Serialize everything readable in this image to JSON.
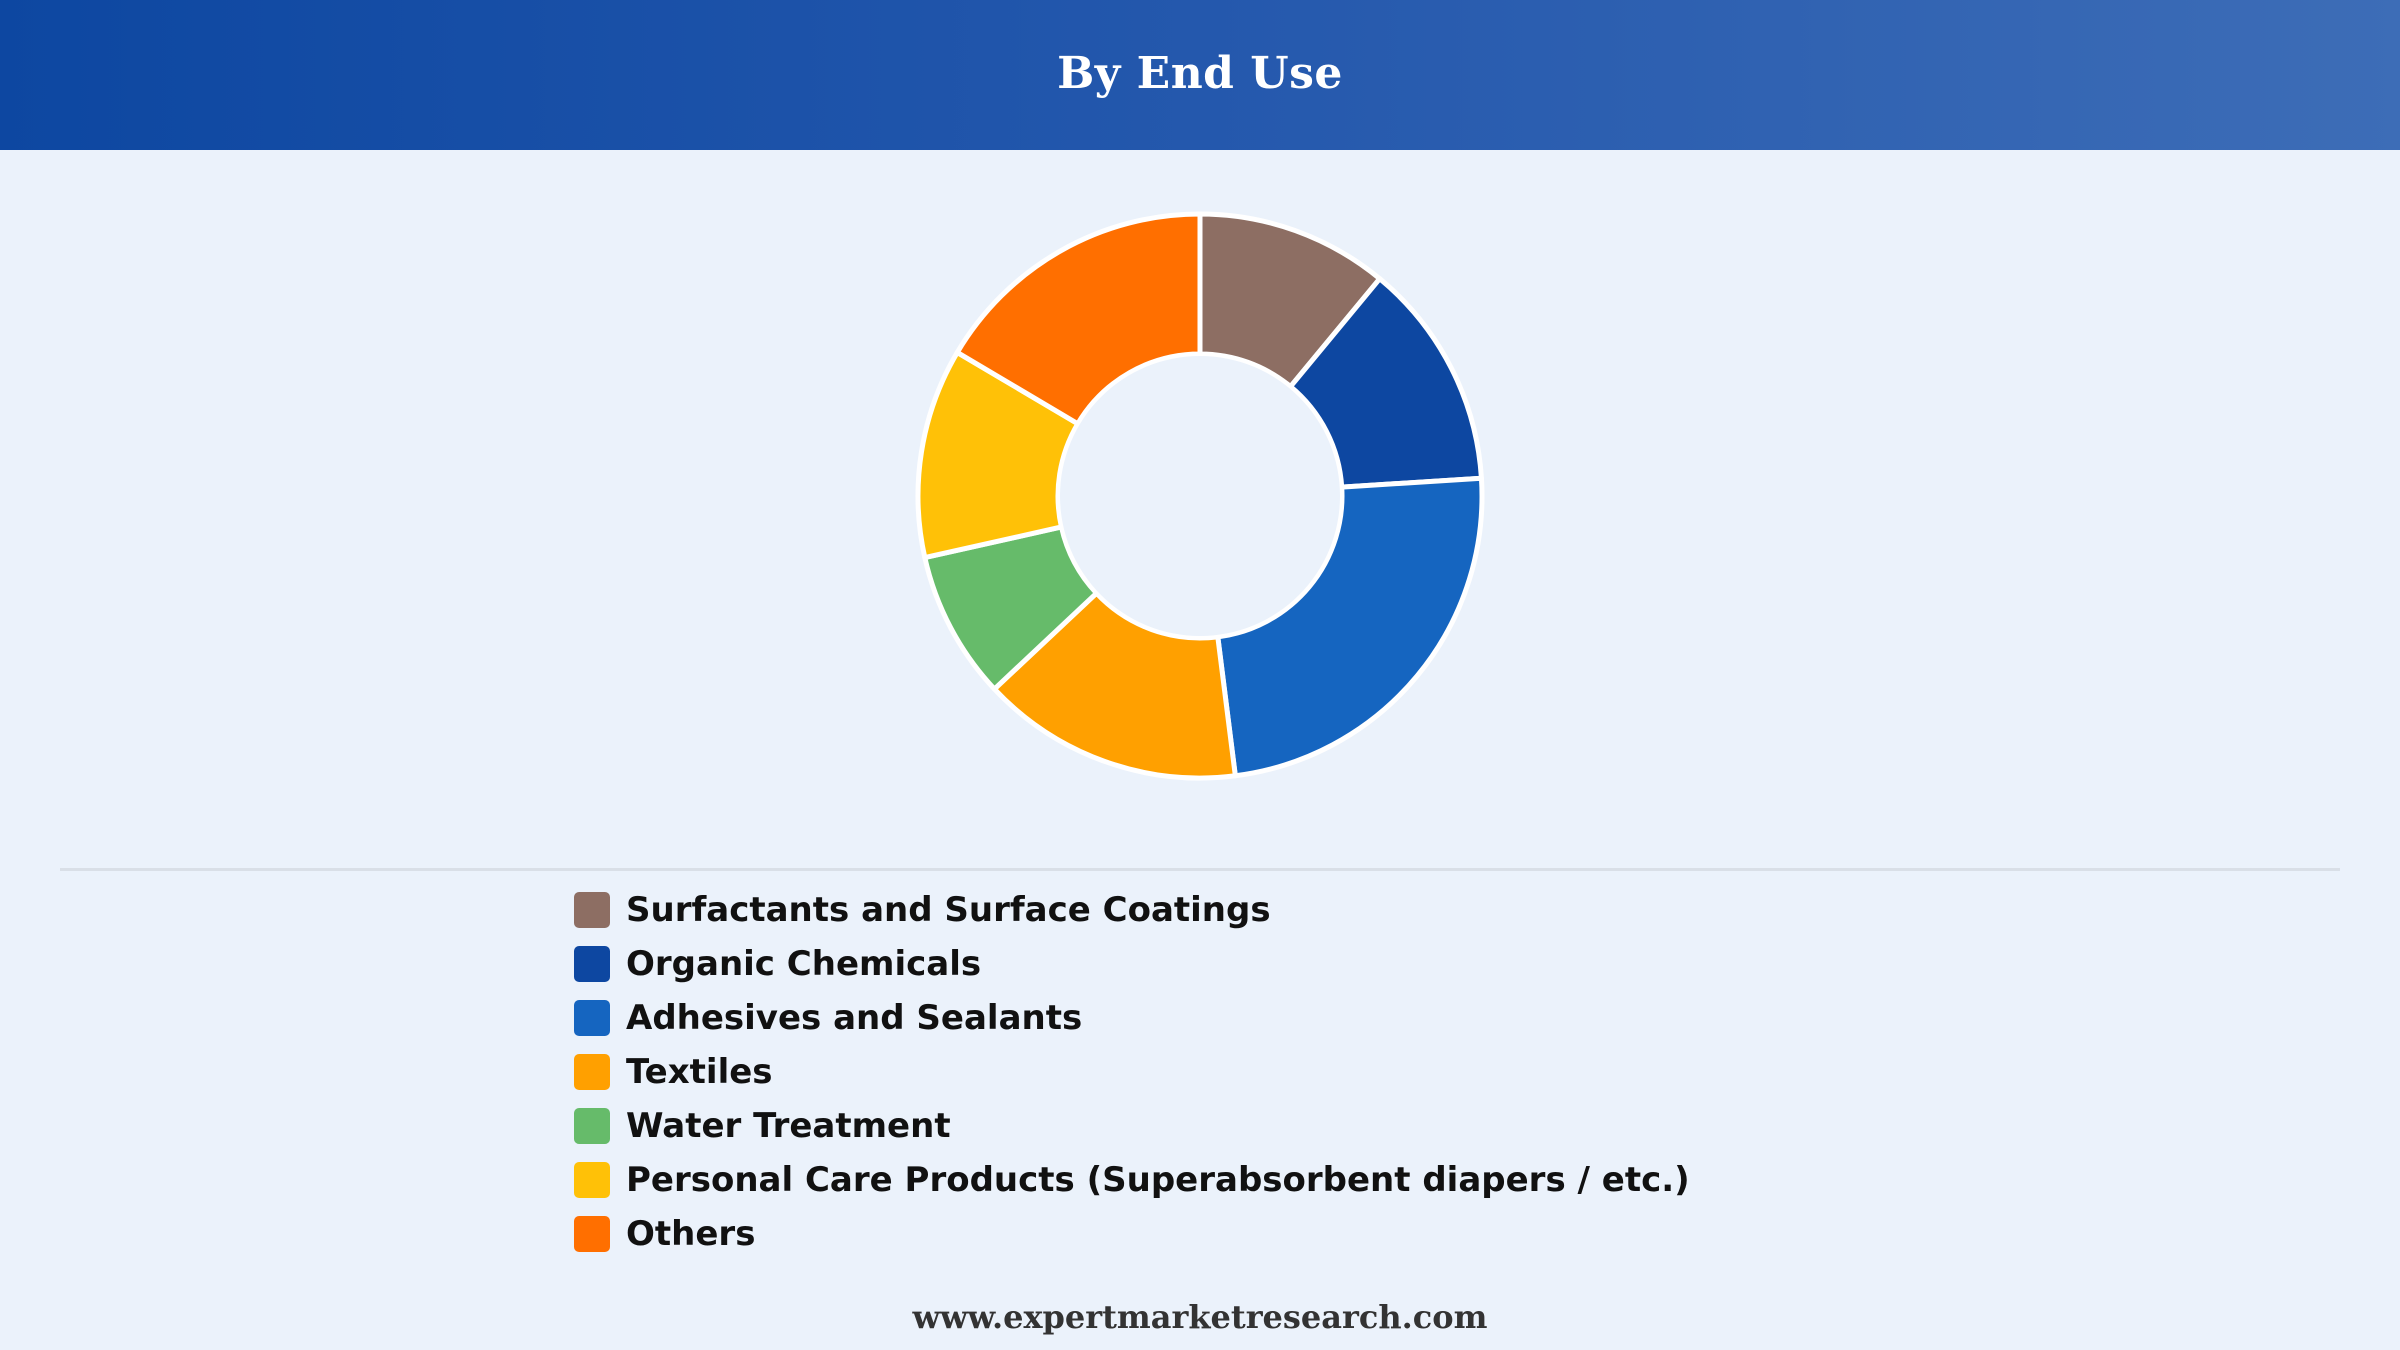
{
  "header": {
    "title": "By End Use"
  },
  "chart_data": {
    "type": "pie",
    "variant": "donut",
    "title": "By End Use",
    "categories": [
      "Surfactants and Surface Coatings",
      "Organic Chemicals",
      "Adhesives and Sealants",
      "Textiles",
      "Water Treatment",
      "Personal Care Products (Superabsorbent diapers / etc.)",
      "Others"
    ],
    "values": [
      11,
      13,
      24,
      15,
      8.5,
      12,
      16.5
    ],
    "colors": [
      "#8d6e63",
      "#0d47a1",
      "#1565c0",
      "#ffa000",
      "#66bb6a",
      "#ffc107",
      "#ff6f00"
    ],
    "legend_position": "bottom"
  },
  "footer": {
    "text": "www.expertmarketresearch.com"
  }
}
